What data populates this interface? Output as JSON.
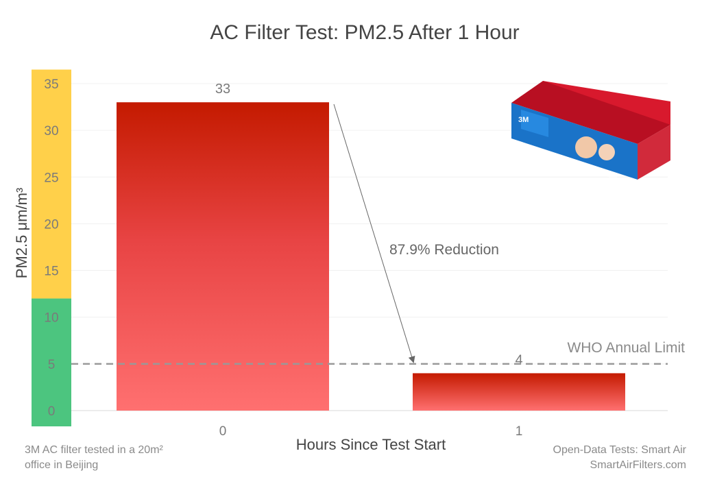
{
  "chart_data": {
    "type": "bar",
    "title": "AC Filter Test: PM2.5 After 1 Hour",
    "xlabel": "Hours Since Test Start",
    "ylabel": "PM2.5 μm/m³",
    "categories": [
      "0",
      "1"
    ],
    "values": [
      33,
      4
    ],
    "data_labels": [
      "33",
      "4"
    ],
    "ylim": [
      0,
      35
    ],
    "yticks": [
      "0",
      "5",
      "10",
      "15",
      "20",
      "25",
      "30",
      "35"
    ],
    "grid": true,
    "bar_color_top": "#c41a00",
    "bar_color_bottom": "#ff7070",
    "reference_line": {
      "value": 5,
      "label": "WHO Annual Limit",
      "color": "#999999"
    },
    "annotation": "87.9% Reduction",
    "y_bands": [
      {
        "from": 0,
        "to": 12,
        "color": "#4cc57f"
      },
      {
        "from": 12,
        "to": 36.5,
        "color": "#ffd04a"
      }
    ],
    "note_left": [
      "3M AC filter tested in a 20m²",
      "office in Beijing"
    ],
    "note_right": [
      "Open-Data Tests: Smart Air",
      "SmartAirFilters.com"
    ]
  },
  "product_image": {
    "icon": "filter-product-box-icon",
    "brand_text": "3M",
    "colors": {
      "lid": "#d8192d",
      "front": "#1a73c8",
      "side": "#d12a3b"
    }
  }
}
